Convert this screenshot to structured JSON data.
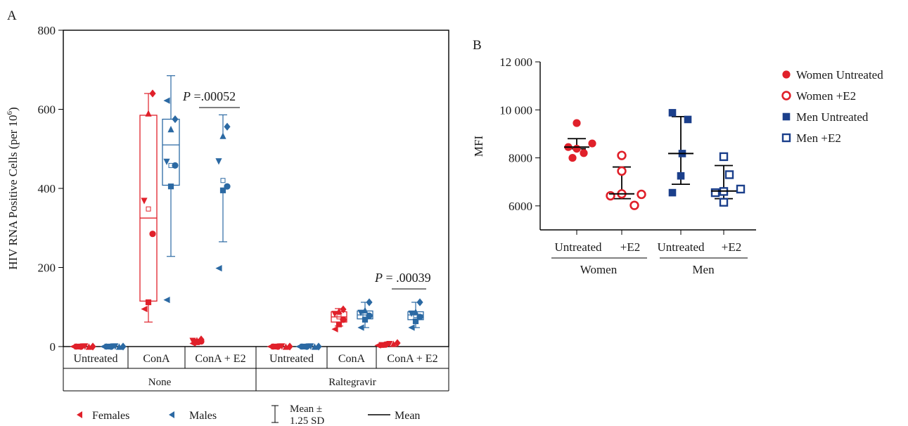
{
  "colors": {
    "red": "#e0202a",
    "blue": "#2b69a3",
    "navy": "#1b3f8b",
    "black": "#000000"
  },
  "panel_labels": {
    "a": "A",
    "b": "B"
  },
  "chart_data": [
    {
      "type": "box",
      "panel": "A",
      "title": "",
      "ylabel_main": "HIV RNA Positive Cells (per 10",
      "ylabel_sup": "6",
      "ylabel_close": ")",
      "ylim": [
        0,
        800
      ],
      "yticks": [
        "0",
        "200",
        "400",
        "600",
        "800"
      ],
      "categories": [
        "Untreated",
        "ConA",
        "ConA + E2",
        "Untreated",
        "ConA",
        "ConA + E2"
      ],
      "groups": [
        "None",
        "Raltegravir"
      ],
      "legend": {
        "females": "Females",
        "males": "Males",
        "bar_line1": "Mean ±",
        "bar_line2": "1.25 SD",
        "mean": "Mean"
      },
      "annotations": [
        {
          "p_label": "P",
          "p_value": " =.00052"
        },
        {
          "p_label": "P",
          "p_value": " = .00039"
        }
      ],
      "series": [
        {
          "name": "Females",
          "color": "#e0202a",
          "boxes": [
            {
              "cat": 0,
              "q1": 0,
              "median": 0,
              "q3": 0,
              "wlo": 0,
              "whi": 0,
              "mean": 0,
              "points": [
                0,
                0,
                0,
                0,
                0,
                0
              ]
            },
            {
              "cat": 1,
              "q1": 115,
              "median": 325,
              "q3": 585,
              "wlo": 62,
              "whi": 640,
              "mean": 348,
              "points": [
                95,
                112,
                285,
                368,
                590,
                640
              ]
            },
            {
              "cat": 2,
              "q1": 10,
              "median": 13,
              "q3": 17,
              "wlo": 8,
              "whi": 18,
              "mean": 13,
              "points": [
                8,
                11,
                13,
                14,
                16,
                18
              ]
            },
            {
              "cat": 3,
              "q1": 0,
              "median": 0,
              "q3": 0,
              "wlo": 0,
              "whi": 0,
              "mean": 0,
              "points": [
                0,
                0,
                0,
                0,
                0,
                0
              ]
            },
            {
              "cat": 4,
              "q1": 62,
              "median": 75,
              "q3": 88,
              "wlo": 52,
              "whi": 96,
              "mean": 75,
              "points": [
                44,
                56,
                68,
                82,
                90,
                94
              ]
            },
            {
              "cat": 5,
              "q1": 4,
              "median": 6,
              "q3": 7,
              "wlo": 2,
              "whi": 9,
              "mean": 6,
              "points": [
                3,
                4,
                5,
                6,
                7,
                9
              ]
            }
          ]
        },
        {
          "name": "Males",
          "color": "#2b69a3",
          "boxes": [
            {
              "cat": 0,
              "q1": 0,
              "median": 0,
              "q3": 0,
              "wlo": 0,
              "whi": 0,
              "mean": 0,
              "points": [
                0,
                0,
                0,
                0,
                0,
                0
              ]
            },
            {
              "cat": 1,
              "q1": 408,
              "median": 510,
              "q3": 575,
              "wlo": 228,
              "whi": 685,
              "mean": 458,
              "points": [
                118,
                405,
                458,
                467,
                550,
                575,
                622
              ]
            },
            {
              "cat": 2,
              "q1": 393,
              "median": 437,
              "q3": 535,
              "wlo": 265,
              "whi": 586,
              "mean": 420,
              "points": [
                198,
                395,
                405,
                468,
                533,
                556
              ]
            },
            {
              "cat": 3,
              "q1": 0,
              "median": 0,
              "q3": 0,
              "wlo": 0,
              "whi": 0,
              "mean": 0,
              "points": [
                0,
                0,
                0,
                0,
                0,
                0
              ]
            },
            {
              "cat": 4,
              "q1": 70,
              "median": 80,
              "q3": 90,
              "wlo": 48,
              "whi": 112,
              "mean": 80,
              "points": [
                48,
                68,
                78,
                85,
                92,
                112
              ]
            },
            {
              "cat": 5,
              "q1": 68,
              "median": 80,
              "q3": 88,
              "wlo": 48,
              "whi": 112,
              "mean": 79,
              "points": [
                48,
                64,
                75,
                83,
                88,
                112
              ]
            }
          ]
        }
      ]
    },
    {
      "type": "scatter",
      "panel": "B",
      "title": "",
      "ylabel": "MFI",
      "ylim": [
        5000,
        12000
      ],
      "yticks": [
        "6000",
        "8000",
        "10 000",
        "12 000"
      ],
      "tick_labels": [
        "Untreated",
        "+E2",
        "Untreated",
        "+E2"
      ],
      "group_labels": [
        "Women",
        "Men"
      ],
      "series": [
        {
          "name": "Women Untreated",
          "marker": "filled-circle",
          "color": "#e0202a",
          "values": [
            8000,
            8200,
            8380,
            8450,
            8600,
            9450
          ],
          "mean": 8450,
          "sd_low": 8380,
          "sd_high": 8800
        },
        {
          "name": "Women +E2",
          "marker": "open-circle",
          "color": "#e0202a",
          "values": [
            6020,
            6420,
            6480,
            6500,
            7450,
            8100
          ],
          "mean": 6500,
          "sd_low": 6300,
          "sd_high": 7620
        },
        {
          "name": "Men Untreated",
          "marker": "filled-square",
          "color": "#1b3f8b",
          "values": [
            6550,
            7250,
            8180,
            9600,
            9880
          ],
          "mean": 8180,
          "sd_low": 6900,
          "sd_high": 9720
        },
        {
          "name": "Men +E2",
          "marker": "open-square",
          "color": "#1b3f8b",
          "values": [
            6150,
            6550,
            6600,
            6700,
            7300,
            8050
          ],
          "mean": 6620,
          "sd_low": 6300,
          "sd_high": 7680
        }
      ]
    }
  ]
}
